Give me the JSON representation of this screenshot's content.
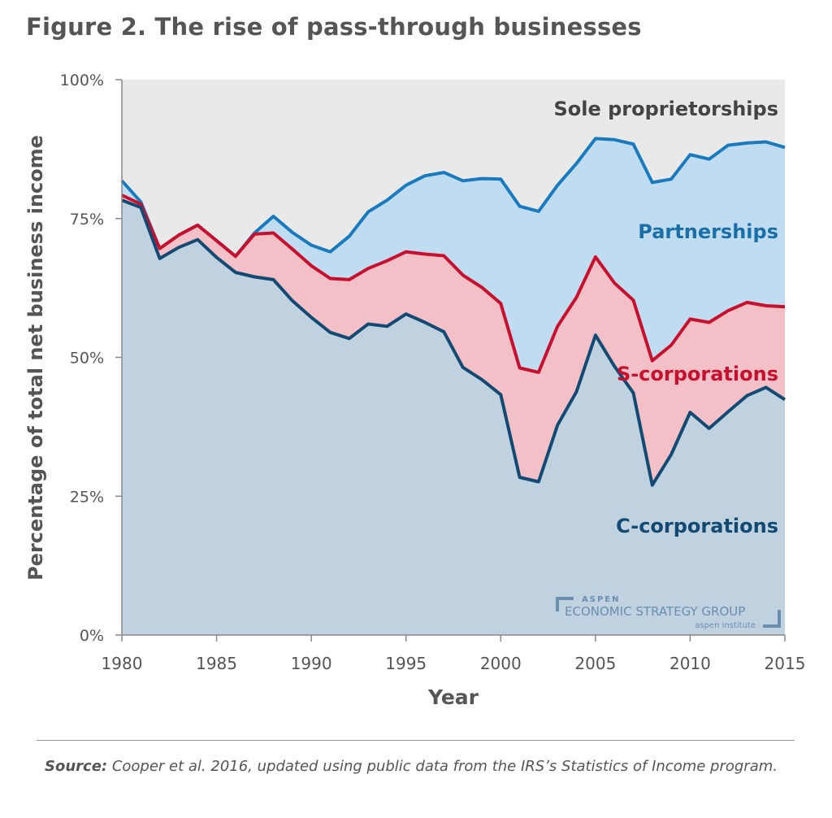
{
  "title": "Figure 2. The rise of pass-through businesses",
  "source_label": "Source:",
  "source_text": " Cooper et al. 2016, updated using public data from the IRS’s Statistics of Income program.",
  "logo": {
    "line1": "ASPEN",
    "line2": "ECONOMIC STRATEGY GROUP",
    "line3": "aspen institute"
  },
  "chart_data": {
    "type": "area",
    "stacked": true,
    "xlabel": "Year",
    "ylabel": "Percentage of total net business income",
    "xlim": [
      1980,
      2015
    ],
    "ylim": [
      0,
      100
    ],
    "x_ticks": [
      "1980",
      "1985",
      "1990",
      "1995",
      "2000",
      "2005",
      "2010",
      "2015"
    ],
    "y_ticks": [
      "0%",
      "25%",
      "50%",
      "75%",
      "100%"
    ],
    "x": [
      1980,
      1981,
      1982,
      1983,
      1984,
      1985,
      1986,
      1987,
      1988,
      1989,
      1990,
      1991,
      1992,
      1993,
      1994,
      1995,
      1996,
      1997,
      1998,
      1999,
      2000,
      2001,
      2002,
      2003,
      2004,
      2005,
      2006,
      2007,
      2008,
      2009,
      2010,
      2011,
      2012,
      2013,
      2014,
      2015
    ],
    "series": [
      {
        "name": "C-corporations",
        "fill": "#c0d2e0",
        "line": "#124a73",
        "values": [
          78.3,
          77,
          67.8,
          69.8,
          71.2,
          68,
          65.3,
          64.5,
          64,
          60.2,
          57.2,
          54.5,
          53.4,
          56,
          55.6,
          57.8,
          56.3,
          54.6,
          48.2,
          46,
          43.3,
          28.4,
          27.6,
          37.8,
          43.8,
          54,
          48.4,
          43.6,
          27,
          32.5,
          40.1,
          37.2,
          40.2,
          43.1,
          44.6,
          42.4
        ]
      },
      {
        "name": "S-corporations",
        "fill": "#f4c0c8",
        "line": "#c8102e",
        "values": [
          0.9,
          0.6,
          1.8,
          2.2,
          2.6,
          3,
          2.9,
          7.7,
          8.4,
          9.3,
          9.3,
          9.7,
          10.6,
          10,
          11.8,
          11.2,
          12.3,
          13.7,
          16.6,
          16.6,
          16.4,
          19.7,
          19.7,
          17.8,
          17,
          14.1,
          15,
          16.7,
          22.4,
          19.7,
          16.8,
          19.1,
          18.2,
          16.8,
          14.7,
          16.7
        ]
      },
      {
        "name": "Partnerships",
        "fill": "#c0dcf0",
        "line": "#1a7abf",
        "values": [
          2.6,
          0.4,
          0,
          0,
          0,
          0,
          0,
          0.2,
          3,
          3,
          3.7,
          4.8,
          7.8,
          10.2,
          10.9,
          12,
          14.1,
          15,
          17,
          19.6,
          22.4,
          29.1,
          29,
          25.4,
          24.1,
          21.3,
          25.8,
          28.1,
          32.1,
          29.9,
          29.6,
          29.4,
          29.8,
          28.7,
          29.5,
          28.7
        ]
      },
      {
        "name": "Sole proprietorships",
        "fill": "#e9e9e9",
        "line": null,
        "values": [
          18.2,
          22,
          30.4,
          28,
          26.2,
          29,
          31.8,
          27.6,
          24.6,
          27.5,
          29.8,
          31,
          28.2,
          23.8,
          21.7,
          19,
          17.3,
          16.7,
          18.2,
          17.8,
          17.9,
          22.8,
          23.7,
          19,
          15.1,
          10.6,
          10.8,
          11.6,
          18.5,
          17.9,
          13.5,
          14.3,
          11.8,
          11.4,
          11.2,
          12.2
        ]
      }
    ],
    "label_colors": {
      "Sole proprietorships": "#444444",
      "Partnerships": "#1a6fa8",
      "S-corporations": "#c8102e",
      "C-corporations": "#124a73"
    },
    "grid": false,
    "legend": "inline labels"
  }
}
